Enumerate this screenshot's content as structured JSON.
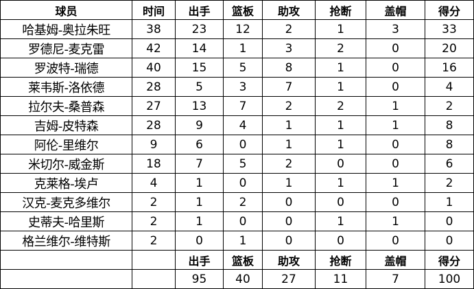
{
  "headers": [
    "球员",
    "时间",
    "出手",
    "篮板",
    "助攻",
    "抢断",
    "盖帽",
    "得分"
  ],
  "rows": [
    [
      "哈基姆-奥拉朱旺",
      "38",
      "23",
      "12",
      "2",
      "1",
      "3",
      "33"
    ],
    [
      "罗德尼-麦克雷",
      "42",
      "14",
      "1",
      "3",
      "2",
      "0",
      "20"
    ],
    [
      "罗波特-瑞德",
      "40",
      "15",
      "5",
      "8",
      "1",
      "0",
      "16"
    ],
    [
      "莱韦斯-洛依德",
      "28",
      "5",
      "3",
      "7",
      "1",
      "0",
      "4"
    ],
    [
      "拉尔夫-桑普森",
      "27",
      "13",
      "7",
      "2",
      "2",
      "1",
      "2"
    ],
    [
      "吉姆-皮特森",
      "28",
      "9",
      "4",
      "1",
      "1",
      "1",
      "8"
    ],
    [
      "阿伦-里维尔",
      "9",
      "6",
      "0",
      "1",
      "1",
      "0",
      "8"
    ],
    [
      "米切尔-威金斯",
      "18",
      "7",
      "5",
      "2",
      "0",
      "0",
      "6"
    ],
    [
      "克莱格-埃卢",
      "4",
      "1",
      "0",
      "1",
      "1",
      "1",
      "2"
    ],
    [
      "汉克-麦克多维尔",
      "2",
      "1",
      "2",
      "0",
      "0",
      "0",
      "1"
    ],
    [
      "史蒂夫-哈里斯",
      "2",
      "1",
      "0",
      "0",
      "1",
      "1",
      "0"
    ],
    [
      "格兰维尔-维特斯",
      "2",
      "0",
      "1",
      "0",
      "0",
      "0",
      "0"
    ]
  ],
  "totals_headers": [
    "出手",
    "篮板",
    "助攻",
    "抢断",
    "盖帽",
    "得分"
  ],
  "totals": [
    "95",
    "40",
    "27",
    "11",
    "7",
    "100"
  ]
}
